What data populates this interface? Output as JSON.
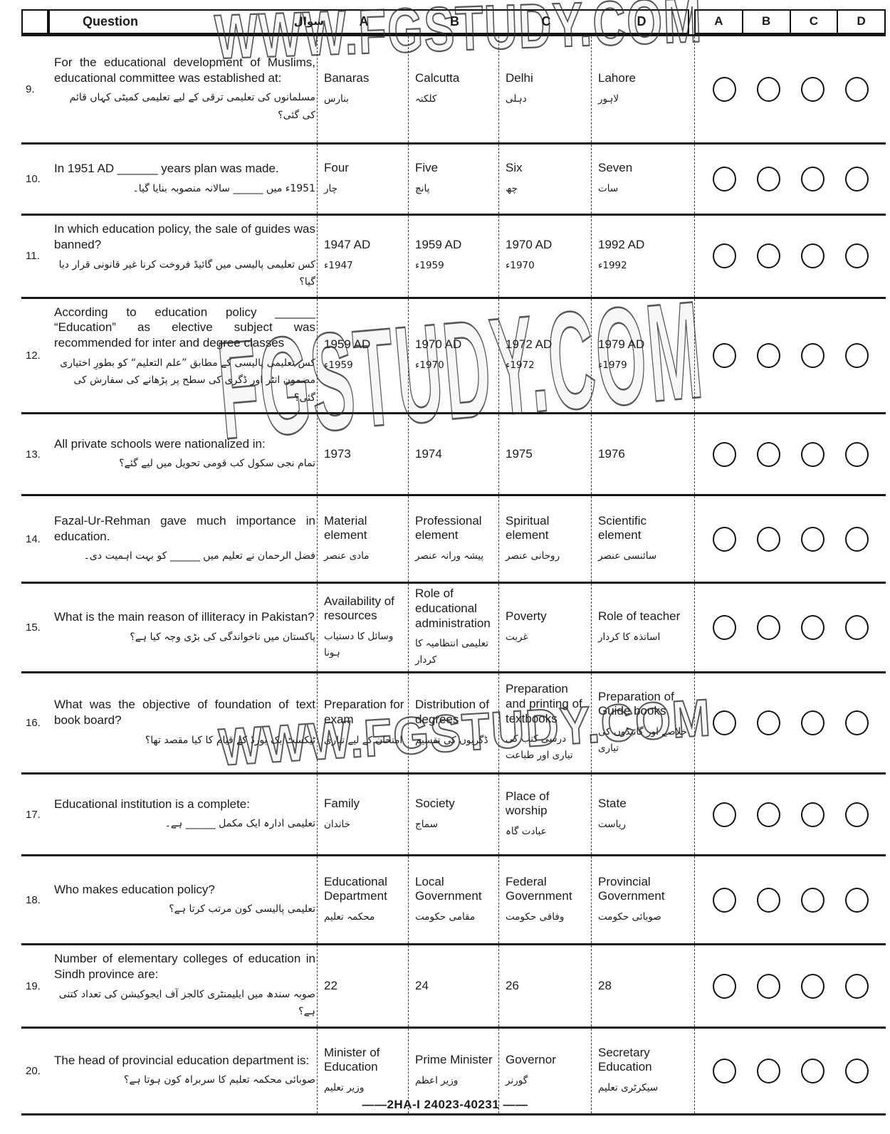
{
  "header": {
    "question_label": "Question",
    "question_label_urdu": "سوال",
    "option_headers": [
      "A",
      "B",
      "C",
      "D"
    ],
    "answer_headers": [
      "A",
      "B",
      "C",
      "D"
    ]
  },
  "watermarks": {
    "top": "WWW.FGSTUDY.COM",
    "middle": "FGSTUDY.COM",
    "bottom": "WWW.FGSTUDY.COM"
  },
  "footer": {
    "label": "——2HA-I 24023-40231 ——"
  },
  "questions": [
    {
      "number": "9.",
      "en": "For the educational development of Muslims, educational committee was established at:",
      "ur": "مسلمانوں کی تعلیمی ترقی کے لیے تعلیمی کمیٹی کہاں قائم کی گئی؟",
      "options": [
        {
          "en": "Banaras",
          "ur": "بنارس"
        },
        {
          "en": "Calcutta",
          "ur": "کلکتہ"
        },
        {
          "en": "Delhi",
          "ur": "دہلی"
        },
        {
          "en": "Lahore",
          "ur": "لاہور"
        }
      ]
    },
    {
      "number": "10.",
      "en": "In 1951 AD ______ years plan was made.",
      "ur": "1951ء میں ______ سالانہ منصوبہ بنایا گیا۔",
      "options": [
        {
          "en": "Four",
          "ur": "چار"
        },
        {
          "en": "Five",
          "ur": "پانچ"
        },
        {
          "en": "Six",
          "ur": "چھ"
        },
        {
          "en": "Seven",
          "ur": "سات"
        }
      ]
    },
    {
      "number": "11.",
      "en": "In which education policy, the sale of guides was banned?",
      "ur": "کس تعلیمی پالیسی میں گائیڈ فروخت کرنا غیر قانونی قرار دیا گیا؟",
      "options": [
        {
          "en": "1947 AD",
          "ur": "1947ء"
        },
        {
          "en": "1959 AD",
          "ur": "1959ء"
        },
        {
          "en": "1970 AD",
          "ur": "1970ء"
        },
        {
          "en": "1992 AD",
          "ur": "1992ء"
        }
      ]
    },
    {
      "number": "12.",
      "en": "According to education policy ______ “Education” as elective subject was recommended for inter and degree classes",
      "ur": "کس تعلیمی پالیسی کے مطابق ”علم التعلیم“ کو بطورِ اختیاری مضمون انٹر اور ڈگری کی سطح پر پڑھانے کی سفارش کی گئی؟",
      "options": [
        {
          "en": "1959 AD",
          "ur": "1959ء"
        },
        {
          "en": "1970 AD",
          "ur": "1970ء"
        },
        {
          "en": "1972 AD",
          "ur": "1972ء"
        },
        {
          "en": "1979 AD",
          "ur": "1979ء"
        }
      ]
    },
    {
      "number": "13.",
      "en": "All private schools were nationalized in:",
      "ur": "تمام نجی سکول کب قومی تحویل میں لیے گئے؟",
      "options": [
        {
          "en": "1973",
          "ur": ""
        },
        {
          "en": "1974",
          "ur": ""
        },
        {
          "en": "1975",
          "ur": ""
        },
        {
          "en": "1976",
          "ur": ""
        }
      ]
    },
    {
      "number": "14.",
      "en": "Fazal-Ur-Rehman gave much importance in education.",
      "ur": "فضل الرحمان نے تعلیم میں ______ کو بہت اہمیت دی۔",
      "options": [
        {
          "en": "Material element",
          "ur": "مادی عنصر"
        },
        {
          "en": "Professional element",
          "ur": "پیشہ ورانہ عنصر"
        },
        {
          "en": "Spiritual element",
          "ur": "روحانی عنصر"
        },
        {
          "en": "Scientific element",
          "ur": "سائنسی عنصر"
        }
      ]
    },
    {
      "number": "15.",
      "en": "What is the main reason of illiteracy in Pakistan?",
      "ur": "پاکستان میں ناخواندگی کی بڑی وجہ کیا ہے؟",
      "options": [
        {
          "en": "Availability of resources",
          "ur": "وسائل کا دستیاب ہونا"
        },
        {
          "en": "Role of educational administration",
          "ur": "تعلیمی انتظامیہ کا کردار"
        },
        {
          "en": "Poverty",
          "ur": "غربت"
        },
        {
          "en": "Role of teacher",
          "ur": "اساتذہ کا کردار"
        }
      ]
    },
    {
      "number": "16.",
      "en": "What was the objective of foundation of text book board?",
      "ur": "ٹیکسٹ بک بورڈ کے قیام کا کیا مقصد تھا؟",
      "options": [
        {
          "en": "Preparation for exam",
          "ur": "امتحان کے لیے تیاری"
        },
        {
          "en": "Distribution of degrees",
          "ur": "ڈگریوں کی تقسیم"
        },
        {
          "en": "Preparation and printing of textbooks",
          "ur": "درسی کتب کی تیاری اور طباعت"
        },
        {
          "en": "Preparation of Guide books",
          "ur": "خلاصے اور گائیڈوں کی تیاری"
        }
      ]
    },
    {
      "number": "17.",
      "en": "Educational institution is a complete:",
      "ur": "تعلیمی ادارہ ایک مکمل ______ ہے۔",
      "options": [
        {
          "en": "Family",
          "ur": "خاندان"
        },
        {
          "en": "Society",
          "ur": "سماج"
        },
        {
          "en": "Place of worship",
          "ur": "عبادت گاہ"
        },
        {
          "en": "State",
          "ur": "ریاست"
        }
      ]
    },
    {
      "number": "18.",
      "en": "Who makes education policy?",
      "ur": "تعلیمی پالیسی کون مرتب کرتا ہے؟",
      "options": [
        {
          "en": "Educational Department",
          "ur": "محکمہ تعلیم"
        },
        {
          "en": "Local Government",
          "ur": "مقامی حکومت"
        },
        {
          "en": "Federal Government",
          "ur": "وفاقی حکومت"
        },
        {
          "en": "Provincial Government",
          "ur": "صوبائی حکومت"
        }
      ]
    },
    {
      "number": "19.",
      "en": "Number of elementary colleges of education in Sindh province are:",
      "ur": "صوبہ سندھ میں ایلیمنٹری کالجز آف ایجوکیشن کی تعداد کتنی ہے؟",
      "options": [
        {
          "en": "22",
          "ur": ""
        },
        {
          "en": "24",
          "ur": ""
        },
        {
          "en": "26",
          "ur": ""
        },
        {
          "en": "28",
          "ur": ""
        }
      ]
    },
    {
      "number": "20.",
      "en": "The head of provincial education department is:",
      "ur": "صوبائی محکمہ تعلیم کا سربراہ کون ہوتا ہے؟",
      "options": [
        {
          "en": "Minister of Education",
          "ur": "وزیر تعلیم"
        },
        {
          "en": "Prime Minister",
          "ur": "وزیر اعظم"
        },
        {
          "en": "Governor",
          "ur": "گورنر"
        },
        {
          "en": "Secretary Education",
          "ur": "سیکرٹری تعلیم"
        }
      ]
    }
  ]
}
